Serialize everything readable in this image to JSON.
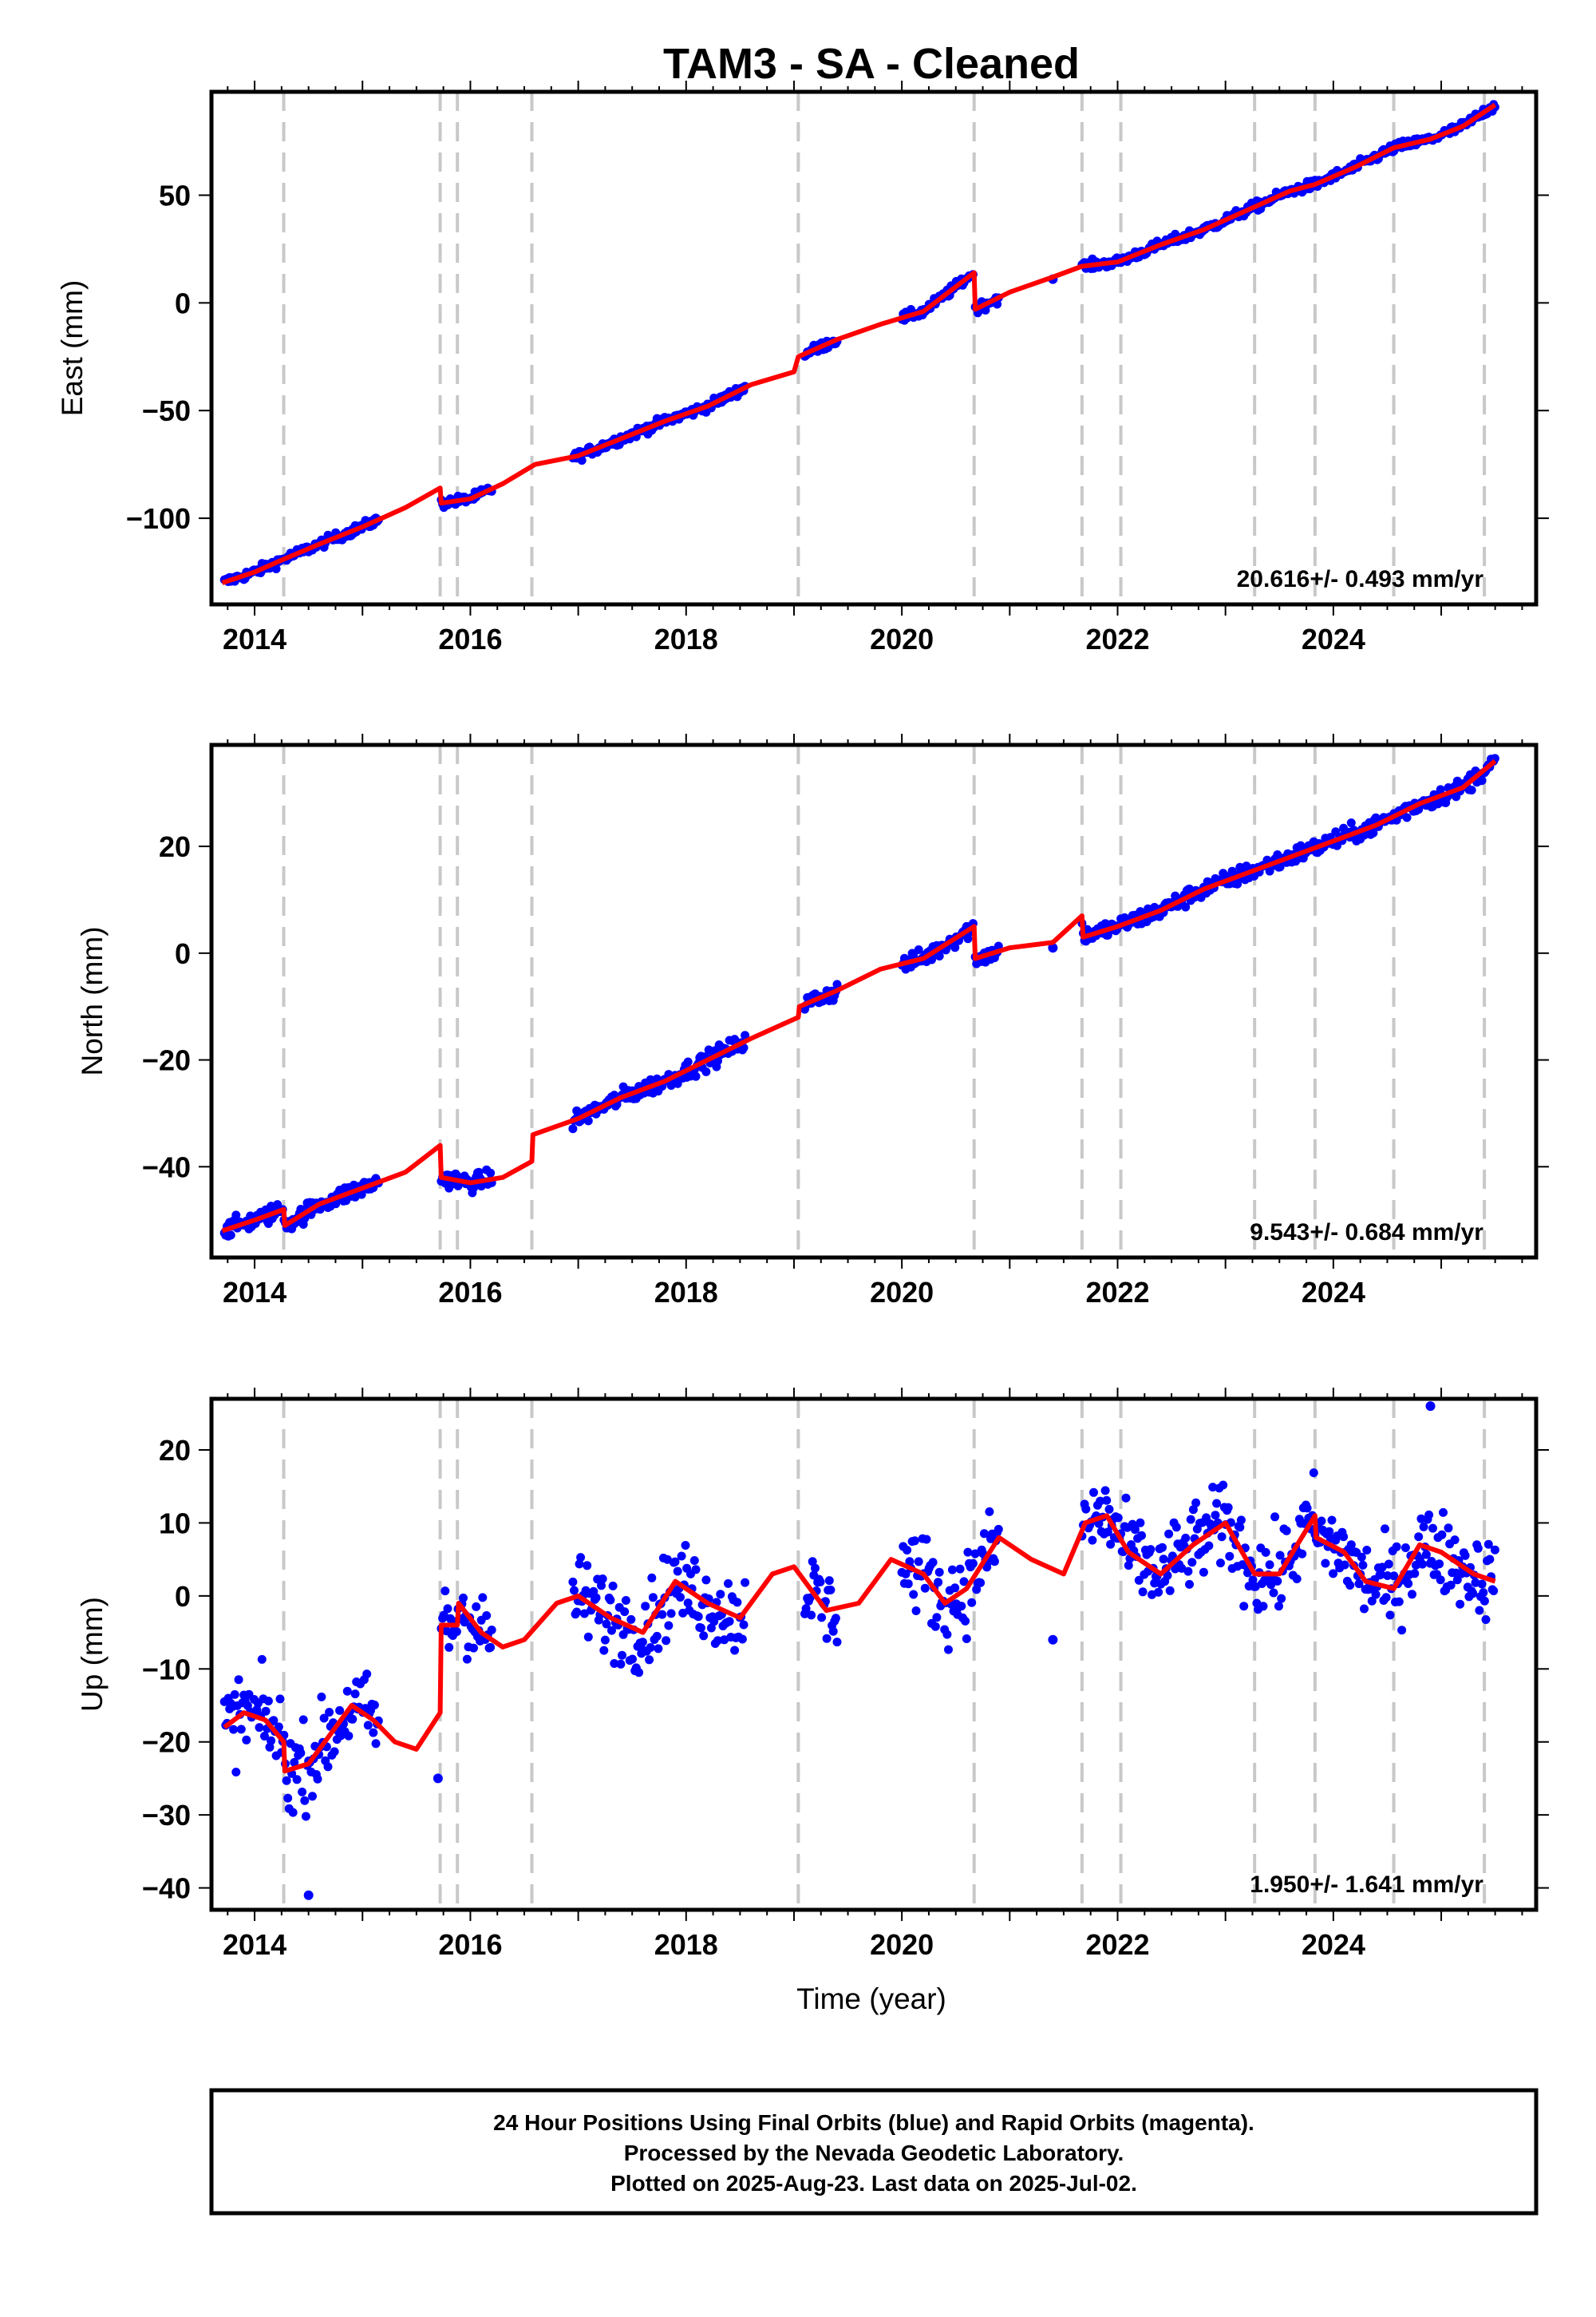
{
  "title": "TAM3  - SA - Cleaned",
  "xlabel": "Time (year)",
  "footer": [
    "24 Hour Positions Using Final Orbits (blue) and Rapid Orbits (magenta).",
    "Processed by the Nevada Geodetic Laboratory.",
    "Plotted on 2025-Aug-23. Last data on 2025-Jul-02."
  ],
  "colors": {
    "data": "#0000ff",
    "model": "#ff0000",
    "events": "#c8c8c8"
  },
  "chart_data": [
    {
      "type": "scatter",
      "panel": "east",
      "ylabel": "East (mm)",
      "rate": "20.616+/- 0.493 mm/yr",
      "xlim": [
        2013.6,
        2025.88
      ],
      "ylim": [
        -140,
        98
      ],
      "xticks": [
        2014,
        2016,
        2018,
        2020,
        2022,
        2024
      ],
      "yticks": [
        -100,
        -50,
        0,
        50
      ],
      "ytick_labels": [
        "−100",
        "−50",
        "0",
        "50"
      ],
      "grid": false,
      "event_lines": [
        2014.27,
        2015.72,
        2015.88,
        2016.57,
        2019.04,
        2020.67,
        2021.67,
        2022.03,
        2023.27,
        2023.83,
        2024.56,
        2025.4
      ],
      "model_x": [
        2013.7,
        2014.0,
        2014.27,
        2014.6,
        2015.0,
        2015.4,
        2015.72,
        2015.73,
        2016.0,
        2016.3,
        2016.6,
        2017.0,
        2017.4,
        2017.8,
        2018.2,
        2018.6,
        2019.0,
        2019.04,
        2019.4,
        2019.8,
        2020.2,
        2020.67,
        2020.68,
        2021.0,
        2021.4,
        2021.67,
        2022.0,
        2022.4,
        2022.8,
        2023.2,
        2023.6,
        2023.83,
        2024.2,
        2024.56,
        2024.9,
        2025.2,
        2025.5
      ],
      "model_y": [
        -130,
        -125,
        -119,
        -112,
        -104,
        -95,
        -86,
        -93,
        -91,
        -84,
        -75,
        -71,
        -63,
        -55,
        -48,
        -38,
        -32,
        -25,
        -17,
        -10,
        -4,
        14,
        -3,
        5,
        12,
        17,
        19,
        27,
        34,
        43,
        52,
        55,
        63,
        72,
        76,
        82,
        92
      ],
      "data_segments": [
        [
          2013.72,
          2015.15
        ],
        [
          2015.73,
          2016.2
        ],
        [
          2016.95,
          2018.55
        ],
        [
          2019.1,
          2019.4
        ],
        [
          2020.0,
          2020.67
        ],
        [
          2020.68,
          2020.9
        ],
        [
          2021.67,
          2025.5
        ]
      ],
      "outliers": [
        [
          2021.4,
          11
        ]
      ],
      "noise": 1.6
    },
    {
      "type": "scatter",
      "panel": "north",
      "ylabel": "North (mm)",
      "rate": "9.543+/- 0.684 mm/yr",
      "xlim": [
        2013.6,
        2025.88
      ],
      "ylim": [
        -57,
        39
      ],
      "xticks": [
        2014,
        2016,
        2018,
        2020,
        2022,
        2024
      ],
      "yticks": [
        -40,
        -20,
        0,
        20
      ],
      "ytick_labels": [
        "−40",
        "−20",
        "0",
        "20"
      ],
      "grid": false,
      "event_lines": [
        2014.27,
        2015.72,
        2015.88,
        2016.57,
        2019.04,
        2020.67,
        2021.67,
        2022.03,
        2023.27,
        2023.83,
        2024.56,
        2025.4
      ],
      "model_x": [
        2013.7,
        2014.0,
        2014.27,
        2014.28,
        2014.6,
        2015.0,
        2015.4,
        2015.72,
        2015.73,
        2016.0,
        2016.3,
        2016.57,
        2016.58,
        2017.0,
        2017.4,
        2017.8,
        2018.2,
        2018.6,
        2019.04,
        2019.05,
        2019.4,
        2019.8,
        2020.2,
        2020.67,
        2020.68,
        2021.0,
        2021.4,
        2021.67,
        2021.68,
        2022.0,
        2022.4,
        2022.8,
        2023.2,
        2023.6,
        2024.0,
        2024.4,
        2024.8,
        2025.2,
        2025.5
      ],
      "model_y": [
        -52,
        -50,
        -48,
        -51,
        -47,
        -44,
        -41,
        -36,
        -42,
        -43,
        -42,
        -39,
        -34,
        -31,
        -27,
        -24,
        -20,
        -16,
        -12,
        -10,
        -7,
        -3,
        -1,
        5,
        -1,
        1,
        2,
        7,
        3,
        5,
        8,
        12,
        15,
        18,
        21,
        24,
        28,
        31,
        36
      ],
      "data_segments": [
        [
          2013.72,
          2015.15
        ],
        [
          2015.73,
          2016.2
        ],
        [
          2016.95,
          2018.55
        ],
        [
          2019.1,
          2019.4
        ],
        [
          2020.0,
          2020.67
        ],
        [
          2020.68,
          2020.9
        ],
        [
          2021.67,
          2025.5
        ]
      ],
      "outliers": [
        [
          2021.4,
          1
        ]
      ],
      "noise": 1.2
    },
    {
      "type": "scatter",
      "panel": "up",
      "ylabel": "Up (mm)",
      "rate": "1.950+/- 1.641 mm/yr",
      "xlim": [
        2013.6,
        2025.88
      ],
      "ylim": [
        -43,
        27
      ],
      "xticks": [
        2014,
        2016,
        2018,
        2020,
        2022,
        2024
      ],
      "yticks": [
        -40,
        -30,
        -20,
        -10,
        0,
        10,
        20
      ],
      "ytick_labels": [
        "−40",
        "−30",
        "−20",
        "−10",
        "0",
        "10",
        "20"
      ],
      "grid": false,
      "event_lines": [
        2014.27,
        2015.72,
        2015.88,
        2016.57,
        2019.04,
        2020.67,
        2021.67,
        2022.03,
        2023.27,
        2023.83,
        2024.56,
        2025.4
      ],
      "model_x": [
        2013.72,
        2013.9,
        2014.1,
        2014.27,
        2014.28,
        2014.5,
        2014.7,
        2014.9,
        2015.1,
        2015.3,
        2015.5,
        2015.72,
        2015.73,
        2015.88,
        2015.89,
        2016.1,
        2016.3,
        2016.5,
        2016.8,
        2017.0,
        2017.3,
        2017.6,
        2017.9,
        2018.2,
        2018.5,
        2018.8,
        2019.0,
        2019.3,
        2019.6,
        2019.9,
        2020.2,
        2020.4,
        2020.6,
        2020.9,
        2021.2,
        2021.5,
        2021.7,
        2021.9,
        2022.1,
        2022.4,
        2022.7,
        2023.0,
        2023.27,
        2023.5,
        2023.83,
        2023.84,
        2024.1,
        2024.3,
        2024.56,
        2024.8,
        2025.0,
        2025.3,
        2025.5
      ],
      "model_y": [
        -18,
        -16,
        -17,
        -20,
        -24,
        -23,
        -19,
        -15,
        -17,
        -20,
        -21,
        -16,
        -4,
        -4,
        -1,
        -5,
        -7,
        -6,
        -1,
        0,
        -3,
        -5,
        2,
        -1,
        -3,
        3,
        4,
        -2,
        -1,
        5,
        3,
        -1,
        1,
        8,
        5,
        3,
        10,
        11,
        6,
        3,
        7,
        10,
        3,
        3,
        11,
        8,
        6,
        2,
        1,
        7,
        6,
        3,
        2
      ],
      "data_segments": [
        [
          2013.72,
          2015.15
        ],
        [
          2015.73,
          2016.2
        ],
        [
          2016.95,
          2018.55
        ],
        [
          2019.1,
          2019.4
        ],
        [
          2020.0,
          2020.67
        ],
        [
          2020.68,
          2020.9
        ],
        [
          2021.67,
          2025.5
        ]
      ],
      "outliers": [
        [
          2021.4,
          -6
        ],
        [
          2015.7,
          -25
        ],
        [
          2014.5,
          -41
        ],
        [
          2024.9,
          26
        ]
      ],
      "noise": 4.0
    }
  ]
}
